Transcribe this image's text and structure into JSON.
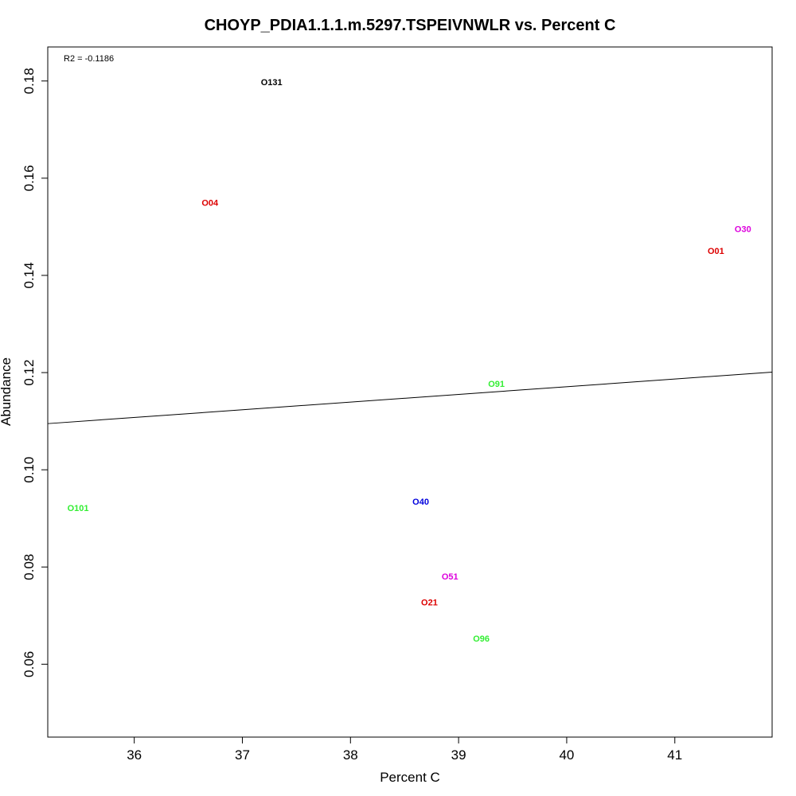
{
  "chart_data": {
    "type": "scatter",
    "title": "CHOYP_PDIA1.1.1.m.5297.TSPEIVNWLR vs. Percent C",
    "xlabel": "Percent C",
    "ylabel": "Abundance",
    "xlim": [
      35.2,
      41.9
    ],
    "ylim": [
      0.045,
      0.187
    ],
    "xticks": [
      36,
      37,
      38,
      39,
      40,
      41
    ],
    "yticks": [
      0.06,
      0.08,
      0.1,
      0.12,
      0.14,
      0.16,
      0.18
    ],
    "xtick_labels": [
      "36",
      "37",
      "38",
      "39",
      "40",
      "41"
    ],
    "ytick_labels": [
      "0.06",
      "0.08",
      "0.10",
      "0.12",
      "0.14",
      "0.16",
      "0.18"
    ],
    "grid": false,
    "annotation": "R2 = -0.1186",
    "points": [
      {
        "label": "O131",
        "x": 37.27,
        "y": 0.1798,
        "color": "#000000"
      },
      {
        "label": "O04",
        "x": 36.7,
        "y": 0.155,
        "color": "#dd0000"
      },
      {
        "label": "O30",
        "x": 41.63,
        "y": 0.1496,
        "color": "#dd00dd"
      },
      {
        "label": "O01",
        "x": 41.38,
        "y": 0.1451,
        "color": "#dd0000"
      },
      {
        "label": "O91",
        "x": 39.35,
        "y": 0.1177,
        "color": "#33ee33"
      },
      {
        "label": "O101",
        "x": 35.48,
        "y": 0.0922,
        "color": "#33ee33"
      },
      {
        "label": "O40",
        "x": 38.65,
        "y": 0.0935,
        "color": "#0000dd"
      },
      {
        "label": "O51",
        "x": 38.92,
        "y": 0.0781,
        "color": "#dd00dd"
      },
      {
        "label": "O21",
        "x": 38.73,
        "y": 0.0728,
        "color": "#dd0000"
      },
      {
        "label": "O96",
        "x": 39.21,
        "y": 0.0653,
        "color": "#33ee33"
      }
    ],
    "fit_line": {
      "x": [
        35.2,
        41.9
      ],
      "y": [
        0.1095,
        0.1201
      ],
      "color": "#000000"
    }
  }
}
